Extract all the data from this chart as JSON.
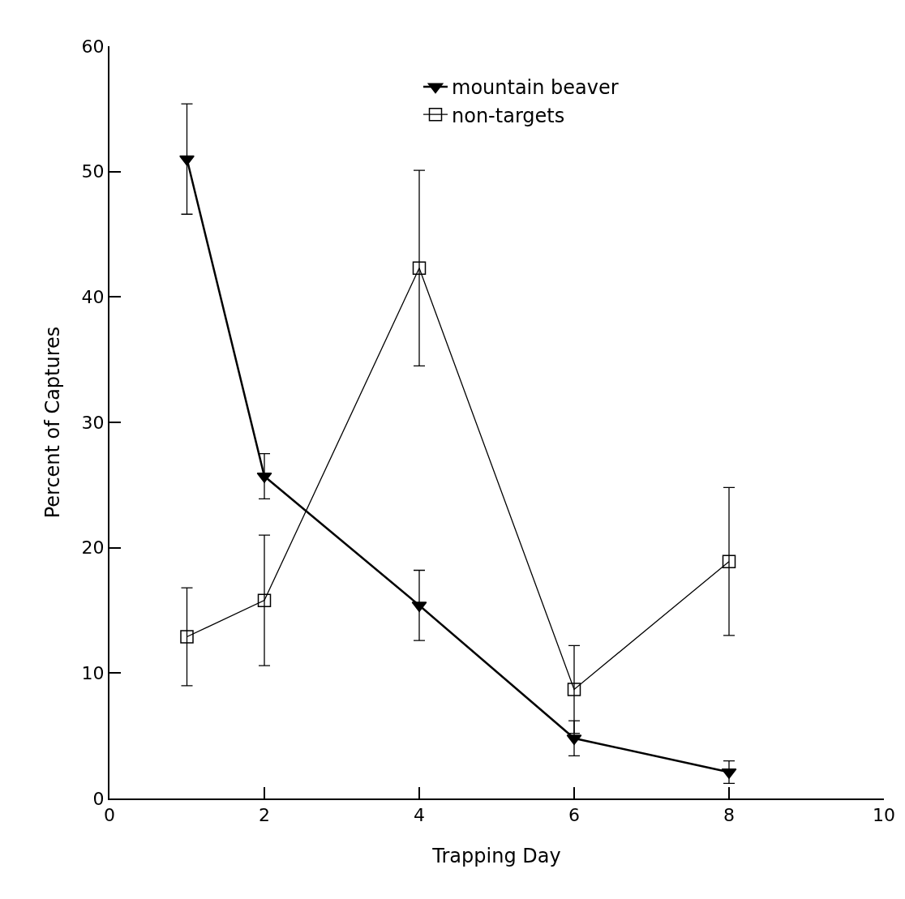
{
  "chart_data": {
    "type": "line",
    "xlabel": "Trapping Day",
    "ylabel": "Percent of Captures",
    "xlim": [
      0,
      10
    ],
    "xticks": [
      0,
      2,
      4,
      6,
      8,
      10
    ],
    "ylim": [
      0,
      60
    ],
    "yticks": [
      0,
      10,
      20,
      30,
      40,
      50,
      60
    ],
    "legend": "top right",
    "series": [
      {
        "name": "mountain beaver",
        "color": "#000000",
        "marker": "triangle",
        "x": [
          1,
          2,
          4,
          6,
          8
        ],
        "values": [
          51.0,
          25.7,
          15.4,
          4.8,
          2.1
        ],
        "errors": [
          4.4,
          1.8,
          2.8,
          1.4,
          0.9
        ]
      },
      {
        "name": "non-targets",
        "color": "#000000",
        "marker": "square",
        "x": [
          1,
          2,
          4,
          6,
          8
        ],
        "values": [
          12.9,
          15.8,
          42.3,
          8.7,
          18.9
        ],
        "errors": [
          3.9,
          5.2,
          7.8,
          3.5,
          5.9
        ]
      }
    ]
  }
}
